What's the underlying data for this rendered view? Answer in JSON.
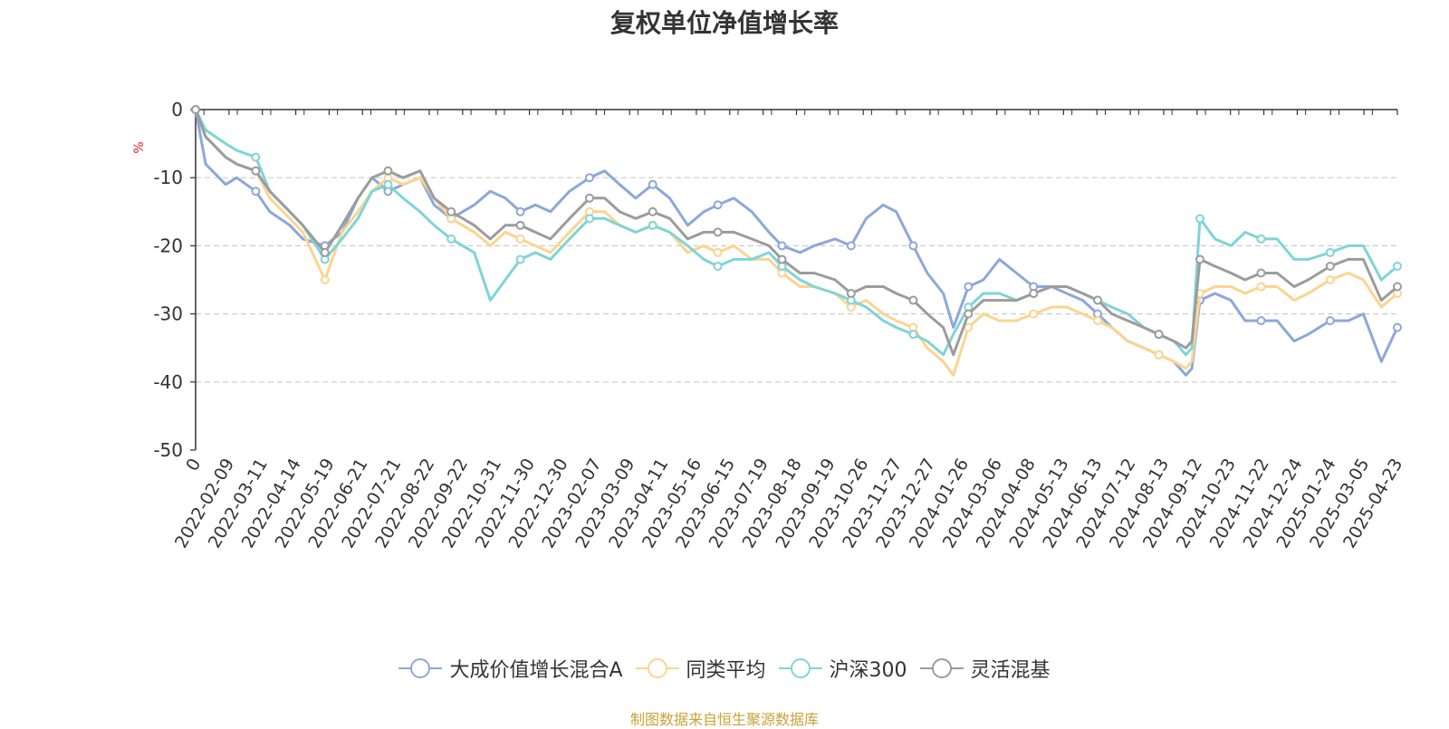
{
  "chart_data": {
    "type": "line",
    "title": "复权单位净值增长率",
    "ylabel": "%",
    "xlabel": "",
    "ylim": [
      -50,
      0
    ],
    "yticks": [
      0,
      -10,
      -20,
      -30,
      -40,
      -50
    ],
    "grid": true,
    "legend_position": "bottom-center",
    "x_tick_labels": [
      "0",
      "2022-02-09",
      "2022-03-11",
      "2022-04-14",
      "2022-05-19",
      "2022-06-21",
      "2022-07-21",
      "2022-08-22",
      "2022-09-22",
      "2022-10-31",
      "2022-11-30",
      "2022-12-30",
      "2023-02-07",
      "2023-03-09",
      "2023-04-11",
      "2023-05-16",
      "2023-06-15",
      "2023-07-19",
      "2023-08-18",
      "2023-09-19",
      "2023-10-26",
      "2023-11-27",
      "2023-12-27",
      "2024-01-26",
      "2024-03-06",
      "2024-04-08",
      "2024-05-13",
      "2024-06-13",
      "2024-07-12",
      "2024-08-13",
      "2024-09-12",
      "2024-10-23",
      "2024-11-22",
      "2024-12-24",
      "2025-01-24",
      "2025-03-05",
      "2025-04-23"
    ],
    "x": [
      "2022-01-10",
      "2022-01-20",
      "2022-02-09",
      "2022-02-20",
      "2022-03-11",
      "2022-03-25",
      "2022-04-14",
      "2022-04-27",
      "2022-05-19",
      "2022-06-05",
      "2022-06-21",
      "2022-07-05",
      "2022-07-21",
      "2022-08-05",
      "2022-08-22",
      "2022-09-05",
      "2022-09-22",
      "2022-10-15",
      "2022-10-31",
      "2022-11-15",
      "2022-11-30",
      "2022-12-15",
      "2022-12-30",
      "2023-01-18",
      "2023-02-07",
      "2023-02-22",
      "2023-03-09",
      "2023-03-25",
      "2023-04-11",
      "2023-04-28",
      "2023-05-16",
      "2023-06-01",
      "2023-06-15",
      "2023-07-01",
      "2023-07-19",
      "2023-08-05",
      "2023-08-18",
      "2023-09-05",
      "2023-09-19",
      "2023-10-10",
      "2023-10-26",
      "2023-11-10",
      "2023-11-27",
      "2023-12-10",
      "2023-12-27",
      "2024-01-10",
      "2024-01-26",
      "2024-02-05",
      "2024-02-20",
      "2024-03-06",
      "2024-03-22",
      "2024-04-08",
      "2024-04-25",
      "2024-05-13",
      "2024-05-28",
      "2024-06-13",
      "2024-06-28",
      "2024-07-12",
      "2024-07-28",
      "2024-08-13",
      "2024-08-28",
      "2024-09-12",
      "2024-09-24",
      "2024-09-30",
      "2024-10-08",
      "2024-10-23",
      "2024-11-08",
      "2024-11-22",
      "2024-12-08",
      "2024-12-24",
      "2025-01-10",
      "2025-01-24",
      "2025-02-15",
      "2025-03-05",
      "2025-03-20",
      "2025-04-07",
      "2025-04-23"
    ],
    "series": [
      {
        "name": "大成价值增长混合A",
        "color": "#8da7da",
        "values": [
          0,
          -8,
          -11,
          -10,
          -12,
          -15,
          -17,
          -19,
          -20,
          -18,
          -13,
          -10,
          -12,
          -11,
          -10,
          -14,
          -16,
          -14,
          -12,
          -13,
          -15,
          -14,
          -15,
          -12,
          -10,
          -9,
          -11,
          -13,
          -11,
          -13,
          -17,
          -15,
          -14,
          -13,
          -15,
          -18,
          -20,
          -21,
          -20,
          -19,
          -20,
          -16,
          -14,
          -15,
          -20,
          -24,
          -27,
          -32,
          -26,
          -25,
          -22,
          -24,
          -26,
          -26,
          -27,
          -28,
          -30,
          -32,
          -34,
          -35,
          -36,
          -37,
          -39,
          -38,
          -28,
          -27,
          -28,
          -31,
          -31,
          -31,
          -34,
          -33,
          -31,
          -31,
          -30,
          -37,
          -32
        ]
      },
      {
        "name": "同类平均",
        "color": "#fcd48f",
        "values": [
          0,
          -4,
          -7,
          -8,
          -9,
          -13,
          -16,
          -18,
          -25,
          -18,
          -15,
          -12,
          -10,
          -11,
          -10,
          -13,
          -16,
          -18,
          -20,
          -18,
          -19,
          -20,
          -21,
          -18,
          -15,
          -15,
          -17,
          -18,
          -17,
          -18,
          -21,
          -20,
          -21,
          -20,
          -22,
          -22,
          -24,
          -26,
          -26,
          -27,
          -29,
          -28,
          -30,
          -31,
          -32,
          -35,
          -37,
          -39,
          -32,
          -30,
          -31,
          -31,
          -30,
          -29,
          -29,
          -30,
          -31,
          -32,
          -34,
          -35,
          -36,
          -37,
          -38,
          -37,
          -27,
          -26,
          -26,
          -27,
          -26,
          -26,
          -28,
          -27,
          -25,
          -24,
          -25,
          -29,
          -27
        ]
      },
      {
        "name": "沪深300",
        "color": "#7fd4d8",
        "values": [
          0,
          -3,
          -5,
          -6,
          -7,
          -12,
          -15,
          -17,
          -22,
          -19,
          -16,
          -12,
          -11,
          -13,
          -15,
          -17,
          -19,
          -21,
          -28,
          -25,
          -22,
          -21,
          -22,
          -19,
          -16,
          -16,
          -17,
          -18,
          -17,
          -18,
          -20,
          -22,
          -23,
          -22,
          -22,
          -21,
          -23,
          -25,
          -26,
          -27,
          -28,
          -29,
          -31,
          -32,
          -33,
          -34,
          -36,
          -33,
          -29,
          -27,
          -27,
          -28,
          -27,
          -26,
          -26,
          -27,
          -28,
          -29,
          -30,
          -32,
          -33,
          -34,
          -36,
          -35,
          -16,
          -19,
          -20,
          -18,
          -19,
          -19,
          -22,
          -22,
          -21,
          -20,
          -20,
          -25,
          -23
        ]
      },
      {
        "name": "灵活混基",
        "color": "#9c9c9c",
        "values": [
          0,
          -4,
          -7,
          -8,
          -9,
          -12,
          -15,
          -17,
          -21,
          -17,
          -13,
          -10,
          -9,
          -10,
          -9,
          -13,
          -15,
          -17,
          -19,
          -17,
          -17,
          -18,
          -19,
          -16,
          -13,
          -13,
          -15,
          -16,
          -15,
          -16,
          -19,
          -18,
          -18,
          -18,
          -19,
          -20,
          -22,
          -24,
          -24,
          -25,
          -27,
          -26,
          -26,
          -27,
          -28,
          -30,
          -32,
          -36,
          -30,
          -28,
          -28,
          -28,
          -27,
          -26,
          -26,
          -27,
          -28,
          -30,
          -31,
          -32,
          -33,
          -34,
          -35,
          -34,
          -22,
          -23,
          -24,
          -25,
          -24,
          -24,
          -26,
          -25,
          -23,
          -22,
          -22,
          -28,
          -26
        ]
      }
    ]
  },
  "source_note": "制图数据来自恒生聚源数据库"
}
